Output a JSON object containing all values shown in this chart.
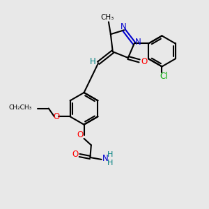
{
  "bg_color": "#e8e8e8",
  "atom_colors": {
    "C": "#000000",
    "N": "#0000cd",
    "O": "#ff0000",
    "Cl": "#00aa00",
    "H": "#008080"
  },
  "figsize": [
    3.0,
    3.0
  ],
  "dpi": 100,
  "xlim": [
    0,
    10
  ],
  "ylim": [
    0,
    10
  ]
}
